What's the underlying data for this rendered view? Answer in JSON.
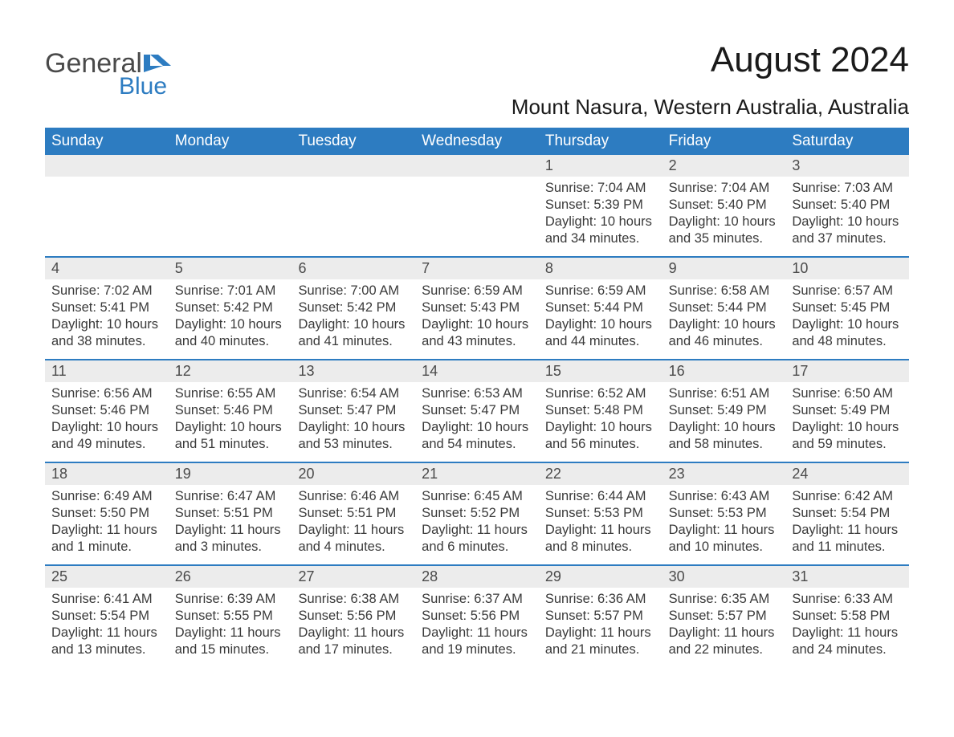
{
  "logo": {
    "text_general": "General",
    "text_blue": "Blue",
    "icon_color": "#2d7cc1"
  },
  "title": "August 2024",
  "location": "Mount Nasura, Western Australia, Australia",
  "colors": {
    "header_bg": "#2d7cc1",
    "header_text": "#ffffff",
    "daynum_bg": "#ececec",
    "daynum_text": "#4a4a4a",
    "body_text": "#3a3a3a",
    "row_border": "#2d7cc1",
    "page_bg": "#ffffff"
  },
  "fonts": {
    "title_size": 44,
    "location_size": 26,
    "weekday_size": 19,
    "daynum_size": 18,
    "content_size": 16.5
  },
  "weekdays": [
    "Sunday",
    "Monday",
    "Tuesday",
    "Wednesday",
    "Thursday",
    "Friday",
    "Saturday"
  ],
  "labels": {
    "sunrise": "Sunrise:",
    "sunset": "Sunset:",
    "daylight": "Daylight:"
  },
  "weeks": [
    [
      null,
      null,
      null,
      null,
      {
        "day": "1",
        "sunrise": "7:04 AM",
        "sunset": "5:39 PM",
        "daylight": "10 hours and 34 minutes."
      },
      {
        "day": "2",
        "sunrise": "7:04 AM",
        "sunset": "5:40 PM",
        "daylight": "10 hours and 35 minutes."
      },
      {
        "day": "3",
        "sunrise": "7:03 AM",
        "sunset": "5:40 PM",
        "daylight": "10 hours and 37 minutes."
      }
    ],
    [
      {
        "day": "4",
        "sunrise": "7:02 AM",
        "sunset": "5:41 PM",
        "daylight": "10 hours and 38 minutes."
      },
      {
        "day": "5",
        "sunrise": "7:01 AM",
        "sunset": "5:42 PM",
        "daylight": "10 hours and 40 minutes."
      },
      {
        "day": "6",
        "sunrise": "7:00 AM",
        "sunset": "5:42 PM",
        "daylight": "10 hours and 41 minutes."
      },
      {
        "day": "7",
        "sunrise": "6:59 AM",
        "sunset": "5:43 PM",
        "daylight": "10 hours and 43 minutes."
      },
      {
        "day": "8",
        "sunrise": "6:59 AM",
        "sunset": "5:44 PM",
        "daylight": "10 hours and 44 minutes."
      },
      {
        "day": "9",
        "sunrise": "6:58 AM",
        "sunset": "5:44 PM",
        "daylight": "10 hours and 46 minutes."
      },
      {
        "day": "10",
        "sunrise": "6:57 AM",
        "sunset": "5:45 PM",
        "daylight": "10 hours and 48 minutes."
      }
    ],
    [
      {
        "day": "11",
        "sunrise": "6:56 AM",
        "sunset": "5:46 PM",
        "daylight": "10 hours and 49 minutes."
      },
      {
        "day": "12",
        "sunrise": "6:55 AM",
        "sunset": "5:46 PM",
        "daylight": "10 hours and 51 minutes."
      },
      {
        "day": "13",
        "sunrise": "6:54 AM",
        "sunset": "5:47 PM",
        "daylight": "10 hours and 53 minutes."
      },
      {
        "day": "14",
        "sunrise": "6:53 AM",
        "sunset": "5:47 PM",
        "daylight": "10 hours and 54 minutes."
      },
      {
        "day": "15",
        "sunrise": "6:52 AM",
        "sunset": "5:48 PM",
        "daylight": "10 hours and 56 minutes."
      },
      {
        "day": "16",
        "sunrise": "6:51 AM",
        "sunset": "5:49 PM",
        "daylight": "10 hours and 58 minutes."
      },
      {
        "day": "17",
        "sunrise": "6:50 AM",
        "sunset": "5:49 PM",
        "daylight": "10 hours and 59 minutes."
      }
    ],
    [
      {
        "day": "18",
        "sunrise": "6:49 AM",
        "sunset": "5:50 PM",
        "daylight": "11 hours and 1 minute."
      },
      {
        "day": "19",
        "sunrise": "6:47 AM",
        "sunset": "5:51 PM",
        "daylight": "11 hours and 3 minutes."
      },
      {
        "day": "20",
        "sunrise": "6:46 AM",
        "sunset": "5:51 PM",
        "daylight": "11 hours and 4 minutes."
      },
      {
        "day": "21",
        "sunrise": "6:45 AM",
        "sunset": "5:52 PM",
        "daylight": "11 hours and 6 minutes."
      },
      {
        "day": "22",
        "sunrise": "6:44 AM",
        "sunset": "5:53 PM",
        "daylight": "11 hours and 8 minutes."
      },
      {
        "day": "23",
        "sunrise": "6:43 AM",
        "sunset": "5:53 PM",
        "daylight": "11 hours and 10 minutes."
      },
      {
        "day": "24",
        "sunrise": "6:42 AM",
        "sunset": "5:54 PM",
        "daylight": "11 hours and 11 minutes."
      }
    ],
    [
      {
        "day": "25",
        "sunrise": "6:41 AM",
        "sunset": "5:54 PM",
        "daylight": "11 hours and 13 minutes."
      },
      {
        "day": "26",
        "sunrise": "6:39 AM",
        "sunset": "5:55 PM",
        "daylight": "11 hours and 15 minutes."
      },
      {
        "day": "27",
        "sunrise": "6:38 AM",
        "sunset": "5:56 PM",
        "daylight": "11 hours and 17 minutes."
      },
      {
        "day": "28",
        "sunrise": "6:37 AM",
        "sunset": "5:56 PM",
        "daylight": "11 hours and 19 minutes."
      },
      {
        "day": "29",
        "sunrise": "6:36 AM",
        "sunset": "5:57 PM",
        "daylight": "11 hours and 21 minutes."
      },
      {
        "day": "30",
        "sunrise": "6:35 AM",
        "sunset": "5:57 PM",
        "daylight": "11 hours and 22 minutes."
      },
      {
        "day": "31",
        "sunrise": "6:33 AM",
        "sunset": "5:58 PM",
        "daylight": "11 hours and 24 minutes."
      }
    ]
  ]
}
